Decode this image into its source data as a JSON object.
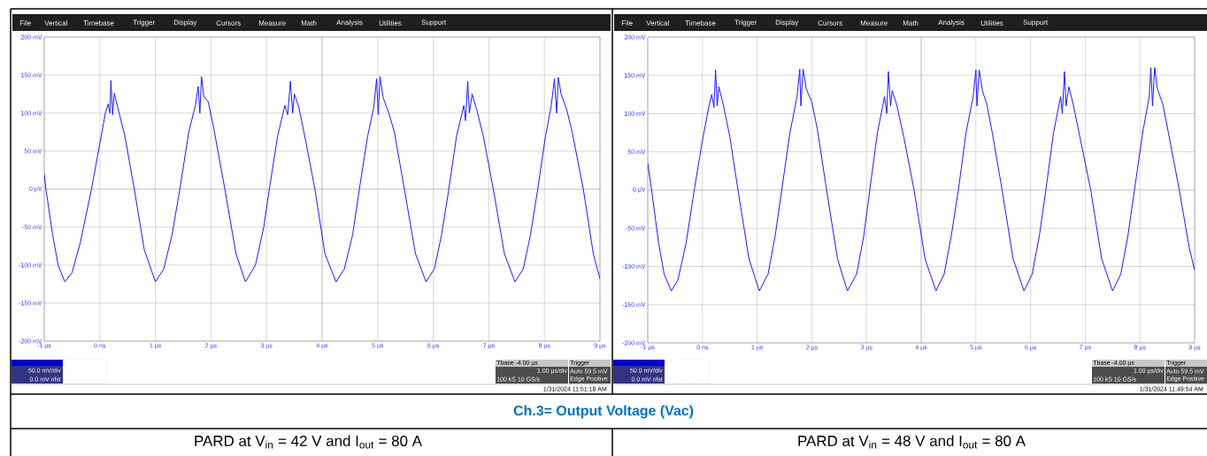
{
  "chart_data": [
    {
      "type": "line",
      "title": "PARD at V$_{in}$ = 42 V and I$_{out}$ = 80 A",
      "color": "#1a1aff",
      "grid": true,
      "x": [
        -1.0,
        -0.97,
        -0.85,
        -0.75,
        -0.63,
        -0.5,
        -0.35,
        -0.15,
        0.0,
        0.1,
        0.15,
        0.18,
        0.2,
        0.23,
        0.26,
        0.32,
        0.45,
        0.62,
        0.8,
        1.0,
        1.15,
        1.3,
        1.44,
        1.6,
        1.72,
        1.77,
        1.8,
        1.83,
        1.87,
        1.95,
        2.05,
        2.25,
        2.45,
        2.62,
        2.8,
        2.95,
        3.05,
        3.2,
        3.33,
        3.38,
        3.43,
        3.47,
        3.5,
        3.58,
        3.7,
        3.87,
        4.05,
        4.25,
        4.4,
        4.55,
        4.67,
        4.82,
        4.93,
        4.98,
        5.01,
        5.04,
        5.1,
        5.2,
        5.3,
        5.48,
        5.68,
        5.87,
        6.02,
        6.15,
        6.28,
        6.42,
        6.55,
        6.58,
        6.62,
        6.65,
        6.7,
        6.78,
        6.9,
        7.08,
        7.28,
        7.47,
        7.62,
        7.75,
        7.88,
        8.02,
        8.12,
        8.18,
        8.22,
        8.25,
        8.3,
        8.4,
        8.5,
        8.7,
        8.88,
        9.0
      ],
      "values": [
        20,
        0,
        -60,
        -100,
        -122,
        -110,
        -70,
        0,
        60,
        100,
        112,
        100,
        143,
        98,
        126,
        108,
        70,
        0,
        -80,
        -122,
        -105,
        -60,
        0,
        75,
        110,
        135,
        100,
        148,
        122,
        115,
        80,
        0,
        -85,
        -122,
        -100,
        -50,
        0,
        70,
        110,
        98,
        142,
        100,
        125,
        108,
        65,
        0,
        -85,
        -122,
        -105,
        -60,
        0,
        70,
        108,
        145,
        98,
        148,
        120,
        100,
        75,
        0,
        -85,
        -122,
        -105,
        -60,
        0,
        70,
        110,
        90,
        142,
        100,
        125,
        105,
        70,
        0,
        -85,
        -122,
        -105,
        -60,
        0,
        70,
        108,
        145,
        100,
        147,
        125,
        105,
        75,
        0,
        -85,
        -118
      ],
      "xlim": [
        -1,
        9
      ],
      "ylim": [
        -200,
        200
      ],
      "xticks": [
        {
          "value": -1,
          "label": "-1 µs"
        },
        {
          "value": 0,
          "label": "0 ns"
        },
        {
          "value": 1,
          "label": "1 µs"
        },
        {
          "value": 2,
          "label": "2 µs"
        },
        {
          "value": 3,
          "label": "3 µs"
        },
        {
          "value": 4,
          "label": "4 µs"
        },
        {
          "value": 5,
          "label": "5 µs"
        },
        {
          "value": 6,
          "label": "6 µs"
        },
        {
          "value": 7,
          "label": "7 µs"
        },
        {
          "value": 8,
          "label": "8 µs"
        },
        {
          "value": 9,
          "label": "9 µs"
        }
      ],
      "yticks": [
        {
          "value": -200,
          "label": "-200 mV"
        },
        {
          "value": -150,
          "label": "-150 mV"
        },
        {
          "value": -100,
          "label": "-100 mV"
        },
        {
          "value": -50,
          "label": "-50 mV"
        },
        {
          "value": 0,
          "label": "0 µV"
        },
        {
          "value": 50,
          "label": "50 mV"
        },
        {
          "value": 100,
          "label": "100 mV"
        },
        {
          "value": 150,
          "label": "150 mV"
        },
        {
          "value": 200,
          "label": "200 mV"
        }
      ],
      "annotations": [
        "File",
        "Vertical",
        "Timebase",
        "Trigger",
        "Display",
        "Cursors",
        "Measure",
        "Math",
        "Analysis",
        "Utilities",
        "Support",
        "50.0 mV/div",
        "0.0 mV ofst",
        "Tbase -4.00 µs",
        "1.00 µs/div",
        "100 kS 10 GS/s",
        "Trigger",
        "Auto 59.5 mV",
        "Edge Positive",
        "1/31/2024 11:51:18 AM",
        "Ch.3= Output Voltage (Vac)"
      ]
    },
    {
      "type": "line",
      "title": "PARD at V$_{in}$ = 48 V and I$_{out}$ = 80 A",
      "color": "#1a1aff",
      "grid": true,
      "x": [
        -1.0,
        -0.93,
        -0.8,
        -0.7,
        -0.57,
        -0.45,
        -0.3,
        -0.15,
        0.0,
        0.12,
        0.17,
        0.21,
        0.24,
        0.27,
        0.3,
        0.38,
        0.5,
        0.65,
        0.85,
        1.04,
        1.2,
        1.33,
        1.45,
        1.6,
        1.73,
        1.78,
        1.8,
        1.84,
        1.9,
        2.0,
        2.1,
        2.27,
        2.47,
        2.65,
        2.82,
        2.95,
        3.06,
        3.2,
        3.33,
        3.37,
        3.4,
        3.44,
        3.47,
        3.55,
        3.68,
        3.87,
        4.07,
        4.27,
        4.42,
        4.55,
        4.68,
        4.82,
        4.95,
        5.0,
        5.02,
        5.06,
        5.12,
        5.2,
        5.3,
        5.48,
        5.68,
        5.88,
        6.03,
        6.16,
        6.28,
        6.42,
        6.55,
        6.58,
        6.62,
        6.65,
        6.7,
        6.78,
        6.9,
        7.1,
        7.3,
        7.5,
        7.65,
        7.78,
        7.9,
        8.05,
        8.17,
        8.2,
        8.23,
        8.27,
        8.32,
        8.42,
        8.52,
        8.72,
        8.9,
        9.0
      ],
      "values": [
        35,
        0,
        -70,
        -110,
        -132,
        -118,
        -70,
        0,
        65,
        110,
        125,
        108,
        157,
        110,
        135,
        112,
        70,
        0,
        -90,
        -132,
        -110,
        -60,
        0,
        75,
        122,
        158,
        110,
        158,
        132,
        115,
        80,
        0,
        -90,
        -132,
        -110,
        -60,
        0,
        75,
        122,
        100,
        155,
        110,
        130,
        112,
        70,
        0,
        -90,
        -132,
        -110,
        -60,
        0,
        75,
        122,
        157,
        110,
        157,
        130,
        112,
        75,
        0,
        -90,
        -132,
        -110,
        -60,
        0,
        75,
        122,
        100,
        155,
        110,
        135,
        112,
        70,
        0,
        -90,
        -132,
        -110,
        -60,
        0,
        75,
        122,
        160,
        110,
        160,
        132,
        112,
        75,
        0,
        -75,
        -105
      ],
      "xlim": [
        -1,
        9
      ],
      "ylim": [
        -200,
        200
      ],
      "xticks": [
        {
          "value": -1,
          "label": "-1 µs"
        },
        {
          "value": 0,
          "label": "0 ns"
        },
        {
          "value": 1,
          "label": "1 µs"
        },
        {
          "value": 2,
          "label": "2 µs"
        },
        {
          "value": 3,
          "label": "3 µs"
        },
        {
          "value": 4,
          "label": "4 µs"
        },
        {
          "value": 5,
          "label": "5 µs"
        },
        {
          "value": 6,
          "label": "6 µs"
        },
        {
          "value": 7,
          "label": "7 µs"
        },
        {
          "value": 8,
          "label": "8 µs"
        },
        {
          "value": 9,
          "label": "9 µs"
        }
      ],
      "yticks": [
        {
          "value": -200,
          "label": "-200 mV"
        },
        {
          "value": -150,
          "label": "-150 mV"
        },
        {
          "value": -100,
          "label": "-100 mV"
        },
        {
          "value": -50,
          "label": "-50 mV"
        },
        {
          "value": 0,
          "label": "0 µV"
        },
        {
          "value": 50,
          "label": "50 mV"
        },
        {
          "value": 100,
          "label": "100 mV"
        },
        {
          "value": 150,
          "label": "150 mV"
        },
        {
          "value": 200,
          "label": "200 mV"
        }
      ],
      "annotations": [
        "File",
        "Vertical",
        "Timebase",
        "Trigger",
        "Display",
        "Cursors",
        "Measure",
        "Math",
        "Analysis",
        "Utilities",
        "Support",
        "50.0 mV/div",
        "0.0 mV ofst",
        "Tbase -4.00 µs",
        "1.00 µs/div",
        "100 kS 10 GS/s",
        "Trigger",
        "Auto 59.5 mV",
        "Edge Positive",
        "1/31/2024 11:49:54 AM"
      ]
    }
  ]
}
